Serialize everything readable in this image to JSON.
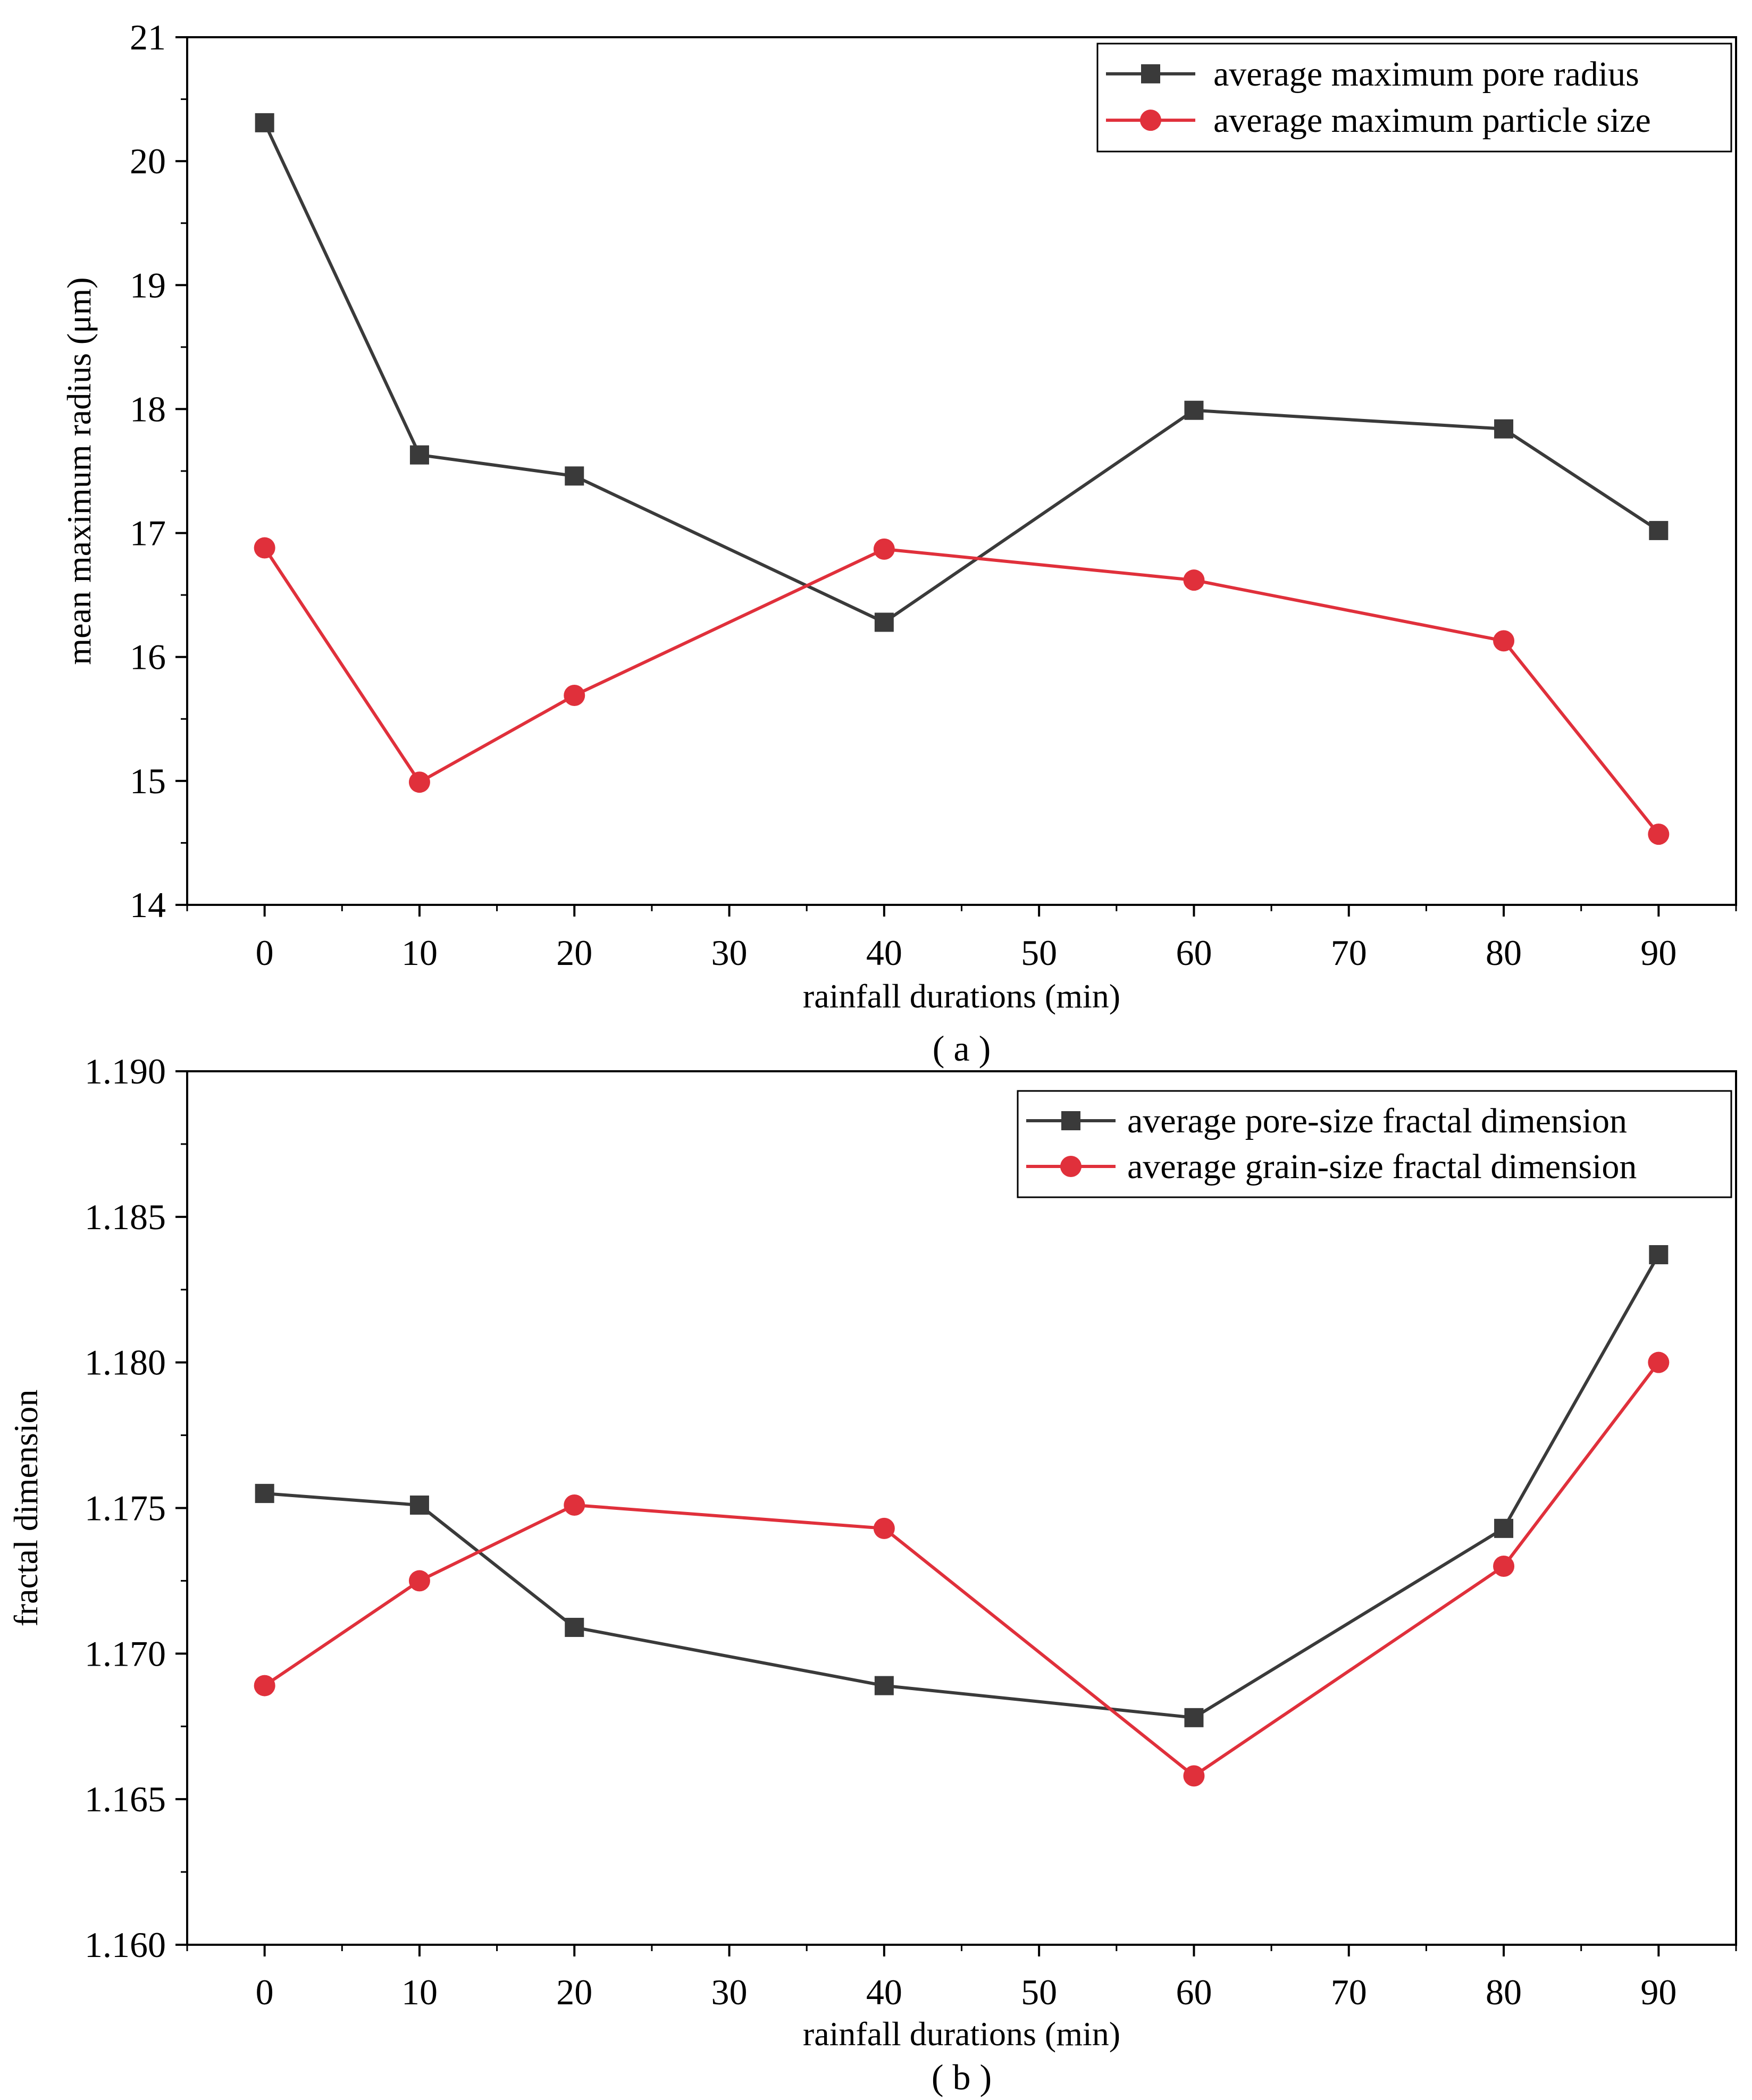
{
  "chart_data": [
    {
      "type": "line",
      "panel_label": "( a )",
      "xlabel": "rainfall durations (min)",
      "ylabel": "mean maximum radius (μm)",
      "xlim": [
        -5,
        95
      ],
      "ylim": [
        14,
        21
      ],
      "x_major_ticks": [
        0,
        10,
        20,
        30,
        40,
        50,
        60,
        70,
        80,
        90
      ],
      "x_tick_labels": [
        "0",
        "10",
        "20",
        "30",
        "40",
        "50",
        "60",
        "70",
        "80",
        "90"
      ],
      "y_major_ticks": [
        14,
        15,
        16,
        17,
        18,
        19,
        20,
        21
      ],
      "y_tick_labels": [
        "14",
        "15",
        "16",
        "17",
        "18",
        "19",
        "20",
        "21"
      ],
      "grid": false,
      "legend_position": "top-right",
      "series": [
        {
          "name": "average maximum pore radius",
          "color": "#3a3a3a",
          "marker": "square",
          "x": [
            0,
            10,
            20,
            40,
            60,
            80,
            90
          ],
          "values": [
            20.31,
            17.63,
            17.46,
            16.28,
            17.99,
            17.84,
            17.02
          ]
        },
        {
          "name": "average maximum particle size",
          "color": "#e0303b",
          "marker": "circle",
          "x": [
            0,
            10,
            20,
            40,
            60,
            80,
            90
          ],
          "values": [
            16.88,
            14.99,
            15.69,
            16.87,
            16.62,
            16.13,
            14.57
          ]
        }
      ]
    },
    {
      "type": "line",
      "panel_label": "( b )",
      "xlabel": "rainfall durations (min)",
      "ylabel": "fractal dimension",
      "xlim": [
        -5,
        95
      ],
      "ylim": [
        1.16,
        1.19
      ],
      "x_major_ticks": [
        0,
        10,
        20,
        30,
        40,
        50,
        60,
        70,
        80,
        90
      ],
      "x_tick_labels": [
        "0",
        "10",
        "20",
        "30",
        "40",
        "50",
        "60",
        "70",
        "80",
        "90"
      ],
      "y_major_ticks": [
        1.16,
        1.165,
        1.17,
        1.175,
        1.18,
        1.185,
        1.19
      ],
      "y_tick_labels": [
        "1.160",
        "1.165",
        "1.170",
        "1.175",
        "1.180",
        "1.185",
        "1.190"
      ],
      "grid": false,
      "legend_position": "top-right",
      "series": [
        {
          "name": "average pore-size fractal dimension",
          "color": "#3a3a3a",
          "marker": "square",
          "x": [
            0,
            10,
            20,
            40,
            60,
            80,
            90
          ],
          "values": [
            1.1755,
            1.1751,
            1.1709,
            1.1689,
            1.1678,
            1.1743,
            1.1837
          ]
        },
        {
          "name": "average grain-size fractal dimension",
          "color": "#e0303b",
          "marker": "circle",
          "x": [
            0,
            10,
            20,
            40,
            60,
            80,
            90
          ],
          "values": [
            1.1689,
            1.1725,
            1.1751,
            1.1743,
            1.1658,
            1.173,
            1.18
          ]
        }
      ]
    }
  ]
}
